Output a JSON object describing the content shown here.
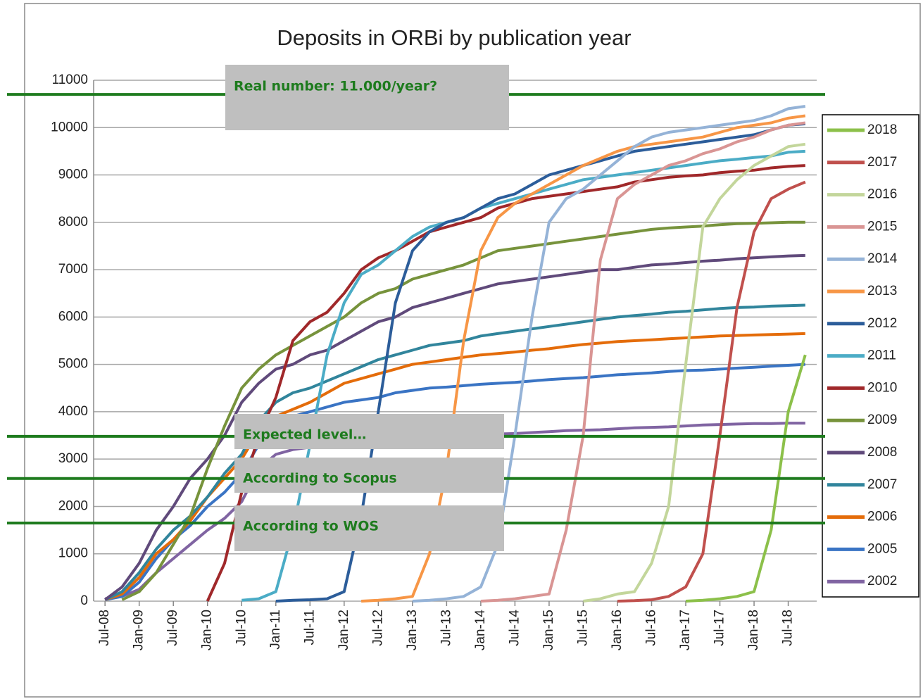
{
  "chart_data": {
    "type": "line",
    "title": "Deposits in ORBi by publication year",
    "x": [
      "2008-07",
      "2008-10",
      "2009-01",
      "2009-04",
      "2009-07",
      "2009-10",
      "2010-01",
      "2010-04",
      "2010-07",
      "2010-10",
      "2011-01",
      "2011-04",
      "2011-07",
      "2011-10",
      "2012-01",
      "2012-04",
      "2012-07",
      "2012-10",
      "2013-01",
      "2013-04",
      "2013-07",
      "2013-10",
      "2014-01",
      "2014-04",
      "2014-07",
      "2014-10",
      "2015-01",
      "2015-04",
      "2015-07",
      "2015-10",
      "2016-01",
      "2016-04",
      "2016-07",
      "2016-10",
      "2017-01",
      "2017-04",
      "2017-07",
      "2017-10",
      "2018-01",
      "2018-04",
      "2018-07",
      "2018-10"
    ],
    "xlim": [
      "2008-05",
      "2018-12"
    ],
    "xticks": [
      {
        "value": "2008-07",
        "label": "Jul-08"
      },
      {
        "value": "2009-01",
        "label": "Jan-09"
      },
      {
        "value": "2009-07",
        "label": "Jul-09"
      },
      {
        "value": "2010-01",
        "label": "Jan-10"
      },
      {
        "value": "2010-07",
        "label": "Jul-10"
      },
      {
        "value": "2011-01",
        "label": "Jan-11"
      },
      {
        "value": "2011-07",
        "label": "Jul-11"
      },
      {
        "value": "2012-01",
        "label": "Jan-12"
      },
      {
        "value": "2012-07",
        "label": "Jul-12"
      },
      {
        "value": "2013-01",
        "label": "Jan-13"
      },
      {
        "value": "2013-07",
        "label": "Jul-13"
      },
      {
        "value": "2014-01",
        "label": "Jan-14"
      },
      {
        "value": "2014-07",
        "label": "Jul-14"
      },
      {
        "value": "2015-01",
        "label": "Jan-15"
      },
      {
        "value": "2015-07",
        "label": "Jul-15"
      },
      {
        "value": "2016-01",
        "label": "Jan-16"
      },
      {
        "value": "2016-07",
        "label": "Jul-16"
      },
      {
        "value": "2017-01",
        "label": "Jan-17"
      },
      {
        "value": "2017-07",
        "label": "Jul-17"
      },
      {
        "value": "2018-01",
        "label": "Jan-18"
      },
      {
        "value": "2018-07",
        "label": "Jul-18"
      }
    ],
    "ylim": [
      0,
      11000
    ],
    "yticks": [
      0,
      1000,
      2000,
      3000,
      4000,
      5000,
      6000,
      7000,
      8000,
      9000,
      10000,
      11000
    ],
    "grid": true,
    "legend": "right",
    "series": [
      {
        "name": "2018",
        "color": "#8cc04a",
        "values": [
          null,
          null,
          null,
          null,
          null,
          null,
          null,
          null,
          null,
          null,
          null,
          null,
          null,
          null,
          null,
          null,
          null,
          null,
          null,
          null,
          null,
          null,
          null,
          null,
          null,
          null,
          null,
          null,
          null,
          null,
          null,
          null,
          null,
          null,
          0,
          20,
          50,
          100,
          200,
          1500,
          4000,
          5200
        ]
      },
      {
        "name": "2017",
        "color": "#c0504d",
        "values": [
          null,
          null,
          null,
          null,
          null,
          null,
          null,
          null,
          null,
          null,
          null,
          null,
          null,
          null,
          null,
          null,
          null,
          null,
          null,
          null,
          null,
          null,
          null,
          null,
          null,
          null,
          null,
          null,
          null,
          null,
          0,
          10,
          30,
          100,
          300,
          1000,
          3500,
          6200,
          7800,
          8500,
          8700,
          8850
        ]
      },
      {
        "name": "2016",
        "color": "#c3d69b",
        "values": [
          null,
          null,
          null,
          null,
          null,
          null,
          null,
          null,
          null,
          null,
          null,
          null,
          null,
          null,
          null,
          null,
          null,
          null,
          null,
          null,
          null,
          null,
          null,
          null,
          null,
          null,
          null,
          null,
          0,
          50,
          150,
          200,
          800,
          2000,
          5000,
          7900,
          8500,
          8900,
          9200,
          9400,
          9600,
          9650
        ]
      },
      {
        "name": "2015",
        "color": "#d99594",
        "values": [
          null,
          null,
          null,
          null,
          null,
          null,
          null,
          null,
          null,
          null,
          null,
          null,
          null,
          null,
          null,
          null,
          null,
          null,
          null,
          null,
          null,
          null,
          0,
          20,
          50,
          100,
          150,
          1500,
          3500,
          7200,
          8500,
          8800,
          9000,
          9200,
          9300,
          9450,
          9550,
          9700,
          9800,
          9950,
          10050,
          10100
        ]
      },
      {
        "name": "2014",
        "color": "#95b3d7",
        "values": [
          null,
          null,
          null,
          null,
          null,
          null,
          null,
          null,
          null,
          null,
          null,
          null,
          null,
          null,
          null,
          null,
          null,
          null,
          0,
          20,
          50,
          100,
          300,
          1200,
          3500,
          6000,
          8000,
          8500,
          8700,
          9000,
          9300,
          9600,
          9800,
          9900,
          9950,
          10000,
          10050,
          10100,
          10150,
          10250,
          10400,
          10450
        ]
      },
      {
        "name": "2013",
        "color": "#f79646",
        "values": [
          null,
          null,
          null,
          null,
          null,
          null,
          null,
          null,
          null,
          null,
          null,
          null,
          null,
          null,
          null,
          0,
          20,
          50,
          100,
          1000,
          2800,
          5500,
          7400,
          8100,
          8400,
          8600,
          8800,
          9000,
          9200,
          9350,
          9500,
          9600,
          9650,
          9700,
          9750,
          9800,
          9900,
          10000,
          10050,
          10100,
          10200,
          10250
        ]
      },
      {
        "name": "2012",
        "color": "#2c5d9a",
        "values": [
          null,
          null,
          null,
          null,
          null,
          null,
          null,
          null,
          null,
          null,
          0,
          20,
          30,
          50,
          200,
          1800,
          4000,
          6300,
          7400,
          7800,
          8000,
          8100,
          8300,
          8500,
          8600,
          8800,
          9000,
          9100,
          9200,
          9300,
          9400,
          9500,
          9550,
          9600,
          9650,
          9700,
          9750,
          9800,
          9850,
          9950,
          10050,
          10080
        ]
      },
      {
        "name": "2011",
        "color": "#4bacc6",
        "values": [
          null,
          null,
          null,
          null,
          null,
          null,
          null,
          null,
          20,
          50,
          200,
          1500,
          3300,
          5200,
          6300,
          6900,
          7100,
          7400,
          7700,
          7900,
          8000,
          8100,
          8300,
          8400,
          8500,
          8600,
          8700,
          8800,
          8900,
          8950,
          9000,
          9050,
          9100,
          9150,
          9200,
          9250,
          9300,
          9330,
          9370,
          9400,
          9480,
          9500
        ]
      },
      {
        "name": "2010",
        "color": "#a0282a",
        "values": [
          null,
          null,
          null,
          null,
          null,
          null,
          0,
          800,
          2300,
          3500,
          4300,
          5500,
          5900,
          6100,
          6500,
          7000,
          7250,
          7400,
          7600,
          7800,
          7900,
          8000,
          8100,
          8300,
          8400,
          8500,
          8550,
          8600,
          8650,
          8700,
          8750,
          8850,
          8900,
          8950,
          8980,
          9000,
          9050,
          9080,
          9100,
          9150,
          9180,
          9200
        ]
      },
      {
        "name": "2009",
        "color": "#77933c",
        "values": [
          null,
          30,
          200,
          600,
          1200,
          1800,
          2800,
          3700,
          4500,
          4900,
          5200,
          5400,
          5600,
          5800,
          6000,
          6300,
          6500,
          6600,
          6800,
          6900,
          7000,
          7100,
          7250,
          7400,
          7450,
          7500,
          7550,
          7600,
          7650,
          7700,
          7750,
          7800,
          7850,
          7880,
          7900,
          7920,
          7950,
          7970,
          7980,
          7990,
          8000,
          8000
        ]
      },
      {
        "name": "2008",
        "color": "#604a7b",
        "values": [
          30,
          300,
          800,
          1500,
          2000,
          2600,
          3000,
          3500,
          4200,
          4600,
          4900,
          5000,
          5200,
          5300,
          5500,
          5700,
          5900,
          6000,
          6200,
          6300,
          6400,
          6500,
          6600,
          6700,
          6750,
          6800,
          6850,
          6900,
          6950,
          7000,
          7000,
          7050,
          7100,
          7120,
          7150,
          7180,
          7200,
          7230,
          7250,
          7270,
          7290,
          7300
        ]
      },
      {
        "name": "2007",
        "color": "#31859c",
        "values": [
          30,
          200,
          600,
          1100,
          1500,
          1800,
          2200,
          2700,
          3100,
          3800,
          4200,
          4400,
          4500,
          4650,
          4800,
          4950,
          5100,
          5200,
          5300,
          5400,
          5450,
          5500,
          5600,
          5650,
          5700,
          5750,
          5800,
          5850,
          5900,
          5950,
          6000,
          6030,
          6060,
          6100,
          6120,
          6150,
          6180,
          6200,
          6210,
          6230,
          6240,
          6250
        ]
      },
      {
        "name": "2006",
        "color": "#e46c0a",
        "values": [
          30,
          150,
          500,
          1000,
          1300,
          1700,
          2200,
          2600,
          3000,
          3600,
          3900,
          4050,
          4200,
          4400,
          4600,
          4700,
          4800,
          4900,
          5000,
          5050,
          5100,
          5150,
          5200,
          5230,
          5260,
          5300,
          5330,
          5380,
          5420,
          5450,
          5480,
          5500,
          5520,
          5540,
          5560,
          5580,
          5600,
          5610,
          5620,
          5630,
          5640,
          5650
        ]
      },
      {
        "name": "2005",
        "color": "#3a74c4",
        "values": [
          30,
          100,
          400,
          900,
          1300,
          1600,
          2000,
          2300,
          2700,
          3300,
          3700,
          3900,
          4000,
          4100,
          4200,
          4250,
          4300,
          4400,
          4450,
          4500,
          4520,
          4550,
          4580,
          4600,
          4620,
          4650,
          4680,
          4700,
          4720,
          4750,
          4780,
          4800,
          4820,
          4850,
          4870,
          4880,
          4900,
          4920,
          4940,
          4960,
          4980,
          5000
        ]
      },
      {
        "name": "2002",
        "color": "#8064a2",
        "values": [
          50,
          100,
          250,
          600,
          900,
          1200,
          1500,
          1750,
          2100,
          2800,
          3100,
          3200,
          3250,
          3300,
          3350,
          3400,
          3420,
          3440,
          3460,
          3480,
          3500,
          3510,
          3520,
          3530,
          3540,
          3560,
          3580,
          3600,
          3610,
          3620,
          3640,
          3660,
          3670,
          3680,
          3700,
          3720,
          3730,
          3740,
          3750,
          3750,
          3760,
          3760
        ]
      }
    ],
    "annotations": [
      {
        "text": "Real number: 11.000/year?",
        "y": 10700
      },
      {
        "text": "Expected level…",
        "y": 3480
      },
      {
        "text": "According to Scopus",
        "y": 2590
      },
      {
        "text": "According to WOS",
        "y": 1650
      }
    ]
  }
}
